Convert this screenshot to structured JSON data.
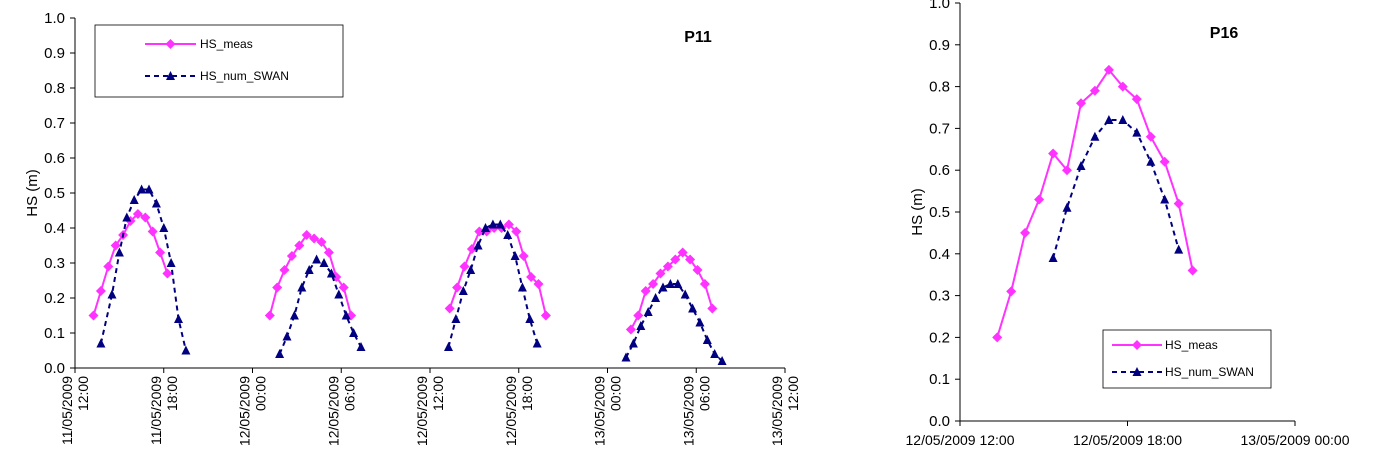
{
  "chart_data": [
    {
      "type": "line",
      "panel_label": "P11",
      "ylabel": "HS (m)",
      "ylim": [
        0.0,
        1.0
      ],
      "y_ticks": [
        "0.0",
        "0.1",
        "0.2",
        "0.3",
        "0.4",
        "0.5",
        "0.6",
        "0.7",
        "0.8",
        "0.9",
        "1.0"
      ],
      "y_tick_values": [
        0,
        0.1,
        0.2,
        0.3,
        0.4,
        0.5,
        0.6,
        0.7,
        0.8,
        0.9,
        1.0
      ],
      "xlim": [
        "2009-05-11 12:00",
        "2009-05-13 12:00"
      ],
      "x_ticks": [
        {
          "t": "2009-05-11 12:00",
          "date": "11/05/2009",
          "time": "12:00"
        },
        {
          "t": "2009-05-11 18:00",
          "date": "11/05/2009",
          "time": "18:00"
        },
        {
          "t": "2009-05-12 00:00",
          "date": "12/05/2009",
          "time": "00:00"
        },
        {
          "t": "2009-05-12 06:00",
          "date": "12/05/2009",
          "time": "06:00"
        },
        {
          "t": "2009-05-12 12:00",
          "date": "12/05/2009",
          "time": "12:00"
        },
        {
          "t": "2009-05-12 18:00",
          "date": "12/05/2009",
          "time": "18:00"
        },
        {
          "t": "2009-05-13 00:00",
          "date": "13/05/2009",
          "time": "00:00"
        },
        {
          "t": "2009-05-13 06:00",
          "date": "13/05/2009",
          "time": "06:00"
        },
        {
          "t": "2009-05-13 12:00",
          "date": "13/05/2009",
          "time": "12:00"
        }
      ],
      "legend_position": "top-left",
      "grid": false,
      "series": [
        {
          "name": "HS_meas",
          "color": "#ff33ff",
          "style": "solid",
          "marker": "diamond",
          "segments": [
            [
              [
                "2009-05-11 13:15",
                0.15
              ],
              [
                "2009-05-11 13:45",
                0.22
              ],
              [
                "2009-05-11 14:15",
                0.29
              ],
              [
                "2009-05-11 14:45",
                0.35
              ],
              [
                "2009-05-11 15:15",
                0.38
              ],
              [
                "2009-05-11 15:45",
                0.42
              ],
              [
                "2009-05-11 16:15",
                0.44
              ],
              [
                "2009-05-11 16:45",
                0.43
              ],
              [
                "2009-05-11 17:15",
                0.39
              ],
              [
                "2009-05-11 17:45",
                0.33
              ],
              [
                "2009-05-11 18:15",
                0.27
              ]
            ],
            [
              [
                "2009-05-12 01:10",
                0.15
              ],
              [
                "2009-05-12 01:40",
                0.23
              ],
              [
                "2009-05-12 02:10",
                0.28
              ],
              [
                "2009-05-12 02:40",
                0.32
              ],
              [
                "2009-05-12 03:10",
                0.35
              ],
              [
                "2009-05-12 03:40",
                0.38
              ],
              [
                "2009-05-12 04:10",
                0.37
              ],
              [
                "2009-05-12 04:40",
                0.36
              ],
              [
                "2009-05-12 05:10",
                0.33
              ],
              [
                "2009-05-12 05:40",
                0.26
              ],
              [
                "2009-05-12 06:10",
                0.23
              ],
              [
                "2009-05-12 06:40",
                0.15
              ]
            ],
            [
              [
                "2009-05-12 13:20",
                0.17
              ],
              [
                "2009-05-12 13:50",
                0.23
              ],
              [
                "2009-05-12 14:20",
                0.29
              ],
              [
                "2009-05-12 14:50",
                0.34
              ],
              [
                "2009-05-12 15:20",
                0.39
              ],
              [
                "2009-05-12 15:50",
                0.39
              ],
              [
                "2009-05-12 16:20",
                0.4
              ],
              [
                "2009-05-12 16:50",
                0.4
              ],
              [
                "2009-05-12 17:20",
                0.41
              ],
              [
                "2009-05-12 17:50",
                0.39
              ],
              [
                "2009-05-12 18:20",
                0.32
              ],
              [
                "2009-05-12 18:50",
                0.26
              ],
              [
                "2009-05-12 19:20",
                0.24
              ],
              [
                "2009-05-12 19:50",
                0.15
              ]
            ],
            [
              [
                "2009-05-13 01:35",
                0.11
              ],
              [
                "2009-05-13 02:05",
                0.15
              ],
              [
                "2009-05-13 02:35",
                0.22
              ],
              [
                "2009-05-13 03:05",
                0.24
              ],
              [
                "2009-05-13 03:35",
                0.27
              ],
              [
                "2009-05-13 04:05",
                0.29
              ],
              [
                "2009-05-13 04:35",
                0.31
              ],
              [
                "2009-05-13 05:05",
                0.33
              ],
              [
                "2009-05-13 05:35",
                0.31
              ],
              [
                "2009-05-13 06:05",
                0.28
              ],
              [
                "2009-05-13 06:35",
                0.24
              ],
              [
                "2009-05-13 07:05",
                0.17
              ]
            ]
          ]
        },
        {
          "name": "HS_num_SWAN",
          "color": "#000080",
          "style": "dashed",
          "marker": "triangle",
          "segments": [
            [
              [
                "2009-05-11 13:45",
                0.07
              ],
              [
                "2009-05-11 14:30",
                0.21
              ],
              [
                "2009-05-11 15:00",
                0.33
              ],
              [
                "2009-05-11 15:30",
                0.43
              ],
              [
                "2009-05-11 16:00",
                0.48
              ],
              [
                "2009-05-11 16:30",
                0.51
              ],
              [
                "2009-05-11 17:00",
                0.51
              ],
              [
                "2009-05-11 17:30",
                0.47
              ],
              [
                "2009-05-11 18:00",
                0.4
              ],
              [
                "2009-05-11 18:30",
                0.3
              ],
              [
                "2009-05-11 19:00",
                0.14
              ],
              [
                "2009-05-11 19:30",
                0.05
              ]
            ],
            [
              [
                "2009-05-12 01:50",
                0.04
              ],
              [
                "2009-05-12 02:20",
                0.09
              ],
              [
                "2009-05-12 02:50",
                0.15
              ],
              [
                "2009-05-12 03:20",
                0.23
              ],
              [
                "2009-05-12 03:50",
                0.28
              ],
              [
                "2009-05-12 04:20",
                0.31
              ],
              [
                "2009-05-12 04:50",
                0.3
              ],
              [
                "2009-05-12 05:20",
                0.27
              ],
              [
                "2009-05-12 05:50",
                0.21
              ],
              [
                "2009-05-12 06:20",
                0.15
              ],
              [
                "2009-05-12 06:50",
                0.1
              ],
              [
                "2009-05-12 07:20",
                0.06
              ]
            ],
            [
              [
                "2009-05-12 13:15",
                0.06
              ],
              [
                "2009-05-12 13:45",
                0.14
              ],
              [
                "2009-05-12 14:15",
                0.22
              ],
              [
                "2009-05-12 14:45",
                0.28
              ],
              [
                "2009-05-12 15:15",
                0.35
              ],
              [
                "2009-05-12 15:45",
                0.4
              ],
              [
                "2009-05-12 16:15",
                0.41
              ],
              [
                "2009-05-12 16:45",
                0.41
              ],
              [
                "2009-05-12 17:15",
                0.38
              ],
              [
                "2009-05-12 17:45",
                0.32
              ],
              [
                "2009-05-12 18:15",
                0.23
              ],
              [
                "2009-05-12 18:45",
                0.14
              ],
              [
                "2009-05-12 19:15",
                0.07
              ]
            ],
            [
              [
                "2009-05-13 01:15",
                0.03
              ],
              [
                "2009-05-13 01:45",
                0.07
              ],
              [
                "2009-05-13 02:15",
                0.12
              ],
              [
                "2009-05-13 02:45",
                0.16
              ],
              [
                "2009-05-13 03:15",
                0.2
              ],
              [
                "2009-05-13 03:45",
                0.23
              ],
              [
                "2009-05-13 04:15",
                0.24
              ],
              [
                "2009-05-13 04:45",
                0.24
              ],
              [
                "2009-05-13 05:15",
                0.21
              ],
              [
                "2009-05-13 05:45",
                0.17
              ],
              [
                "2009-05-13 06:15",
                0.13
              ],
              [
                "2009-05-13 06:45",
                0.08
              ],
              [
                "2009-05-13 07:15",
                0.04
              ],
              [
                "2009-05-13 07:45",
                0.02
              ]
            ]
          ]
        }
      ]
    },
    {
      "type": "line",
      "panel_label": "P16",
      "ylabel": "HS (m)",
      "ylim": [
        0.0,
        1.0
      ],
      "y_ticks": [
        "0.0",
        "0.1",
        "0.2",
        "0.3",
        "0.4",
        "0.5",
        "0.6",
        "0.7",
        "0.8",
        "0.9",
        "1.0"
      ],
      "y_tick_values": [
        0,
        0.1,
        0.2,
        0.3,
        0.4,
        0.5,
        0.6,
        0.7,
        0.8,
        0.9,
        1.0
      ],
      "xlim": [
        "2009-05-12 12:00",
        "2009-05-13 00:00"
      ],
      "x_ticks": [
        {
          "t": "2009-05-12 12:00",
          "label": "12/05/2009 12:00"
        },
        {
          "t": "2009-05-12 18:00",
          "label": "12/05/2009 18:00"
        },
        {
          "t": "2009-05-13 00:00",
          "label": "13/05/2009 00:00"
        }
      ],
      "legend_position": "bottom-right",
      "grid": false,
      "series": [
        {
          "name": "HS_meas",
          "color": "#ff33ff",
          "style": "solid",
          "marker": "diamond",
          "segments": [
            [
              [
                "2009-05-12 13:20",
                0.2
              ],
              [
                "2009-05-12 13:50",
                0.31
              ],
              [
                "2009-05-12 14:20",
                0.45
              ],
              [
                "2009-05-12 14:50",
                0.53
              ],
              [
                "2009-05-12 15:20",
                0.64
              ],
              [
                "2009-05-12 15:50",
                0.6
              ],
              [
                "2009-05-12 16:20",
                0.76
              ],
              [
                "2009-05-12 16:50",
                0.79
              ],
              [
                "2009-05-12 17:20",
                0.84
              ],
              [
                "2009-05-12 17:50",
                0.8
              ],
              [
                "2009-05-12 18:20",
                0.77
              ],
              [
                "2009-05-12 18:50",
                0.68
              ],
              [
                "2009-05-12 19:20",
                0.62
              ],
              [
                "2009-05-12 19:50",
                0.52
              ],
              [
                "2009-05-12 20:20",
                0.36
              ]
            ]
          ]
        },
        {
          "name": "HS_num_SWAN",
          "color": "#000080",
          "style": "dashed",
          "marker": "triangle",
          "segments": [
            [
              [
                "2009-05-12 15:20",
                0.39
              ],
              [
                "2009-05-12 15:50",
                0.51
              ],
              [
                "2009-05-12 16:20",
                0.61
              ],
              [
                "2009-05-12 16:50",
                0.68
              ],
              [
                "2009-05-12 17:20",
                0.72
              ],
              [
                "2009-05-12 17:50",
                0.72
              ],
              [
                "2009-05-12 18:20",
                0.69
              ],
              [
                "2009-05-12 18:50",
                0.62
              ],
              [
                "2009-05-12 19:20",
                0.53
              ],
              [
                "2009-05-12 19:50",
                0.41
              ]
            ]
          ]
        }
      ]
    }
  ]
}
